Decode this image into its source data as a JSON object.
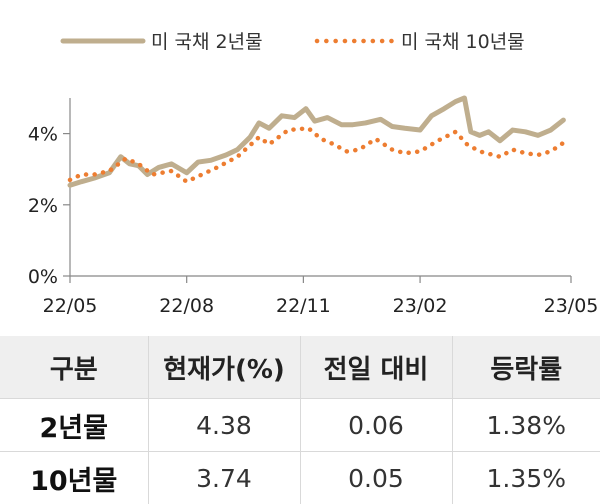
{
  "chart_data": {
    "type": "line",
    "x_start": "2022-05-01",
    "x_ticks": [
      "22/05",
      "22/08",
      "22/11",
      "23/02",
      "23/05"
    ],
    "y_ticks": [
      "0%",
      "2%",
      "4%"
    ],
    "ylim": [
      0,
      5
    ],
    "grid": false,
    "legend_position": "top",
    "series": [
      {
        "name": "미 국채 2년물",
        "style": "solid",
        "color": "#bfae8e",
        "points": [
          [
            "2022-05-01",
            2.55
          ],
          [
            "2022-05-10",
            2.65
          ],
          [
            "2022-05-20",
            2.75
          ],
          [
            "2022-06-01",
            2.9
          ],
          [
            "2022-06-10",
            3.35
          ],
          [
            "2022-06-17",
            3.15
          ],
          [
            "2022-06-24",
            3.1
          ],
          [
            "2022-07-01",
            2.85
          ],
          [
            "2022-07-10",
            3.05
          ],
          [
            "2022-07-20",
            3.15
          ],
          [
            "2022-08-01",
            2.9
          ],
          [
            "2022-08-10",
            3.2
          ],
          [
            "2022-08-20",
            3.25
          ],
          [
            "2022-09-01",
            3.4
          ],
          [
            "2022-09-10",
            3.55
          ],
          [
            "2022-09-20",
            3.9
          ],
          [
            "2022-09-27",
            4.3
          ],
          [
            "2022-10-05",
            4.15
          ],
          [
            "2022-10-15",
            4.5
          ],
          [
            "2022-10-25",
            4.45
          ],
          [
            "2022-11-03",
            4.7
          ],
          [
            "2022-11-10",
            4.35
          ],
          [
            "2022-11-20",
            4.45
          ],
          [
            "2022-12-01",
            4.25
          ],
          [
            "2022-12-10",
            4.25
          ],
          [
            "2022-12-20",
            4.3
          ],
          [
            "2023-01-01",
            4.4
          ],
          [
            "2023-01-10",
            4.2
          ],
          [
            "2023-01-20",
            4.15
          ],
          [
            "2023-02-01",
            4.1
          ],
          [
            "2023-02-10",
            4.5
          ],
          [
            "2023-02-20",
            4.7
          ],
          [
            "2023-03-01",
            4.9
          ],
          [
            "2023-03-08",
            5.0
          ],
          [
            "2023-03-13",
            4.05
          ],
          [
            "2023-03-20",
            3.95
          ],
          [
            "2023-03-27",
            4.05
          ],
          [
            "2023-04-05",
            3.8
          ],
          [
            "2023-04-15",
            4.1
          ],
          [
            "2023-04-25",
            4.05
          ],
          [
            "2023-05-05",
            3.95
          ],
          [
            "2023-05-15",
            4.1
          ],
          [
            "2023-05-25",
            4.38
          ]
        ]
      },
      {
        "name": "미 국채 10년물",
        "style": "dotted",
        "color": "#ed7d31",
        "points": [
          [
            "2022-05-01",
            2.7
          ],
          [
            "2022-05-10",
            2.85
          ],
          [
            "2022-05-20",
            2.85
          ],
          [
            "2022-06-01",
            2.95
          ],
          [
            "2022-06-14",
            3.3
          ],
          [
            "2022-06-24",
            3.15
          ],
          [
            "2022-07-05",
            2.85
          ],
          [
            "2022-07-20",
            2.95
          ],
          [
            "2022-08-01",
            2.65
          ],
          [
            "2022-08-10",
            2.8
          ],
          [
            "2022-08-25",
            3.05
          ],
          [
            "2022-09-10",
            3.35
          ],
          [
            "2022-09-27",
            3.9
          ],
          [
            "2022-10-05",
            3.7
          ],
          [
            "2022-10-20",
            4.1
          ],
          [
            "2022-11-05",
            4.15
          ],
          [
            "2022-11-15",
            3.85
          ],
          [
            "2022-11-25",
            3.7
          ],
          [
            "2022-12-05",
            3.5
          ],
          [
            "2022-12-15",
            3.55
          ],
          [
            "2022-12-28",
            3.85
          ],
          [
            "2023-01-10",
            3.55
          ],
          [
            "2023-01-20",
            3.45
          ],
          [
            "2023-02-01",
            3.5
          ],
          [
            "2023-02-15",
            3.8
          ],
          [
            "2023-03-01",
            4.05
          ],
          [
            "2023-03-10",
            3.7
          ],
          [
            "2023-03-20",
            3.5
          ],
          [
            "2023-04-05",
            3.35
          ],
          [
            "2023-04-15",
            3.55
          ],
          [
            "2023-04-25",
            3.45
          ],
          [
            "2023-05-05",
            3.4
          ],
          [
            "2023-05-15",
            3.5
          ],
          [
            "2023-05-25",
            3.74
          ]
        ]
      }
    ]
  },
  "table": {
    "headers": [
      "구분",
      "현재가(%)",
      "전일 대비",
      "등락률"
    ],
    "rows": [
      [
        "2년물",
        "4.38",
        "0.06",
        "1.38%"
      ],
      [
        "10년물",
        "3.74",
        "0.05",
        "1.35%"
      ]
    ]
  }
}
